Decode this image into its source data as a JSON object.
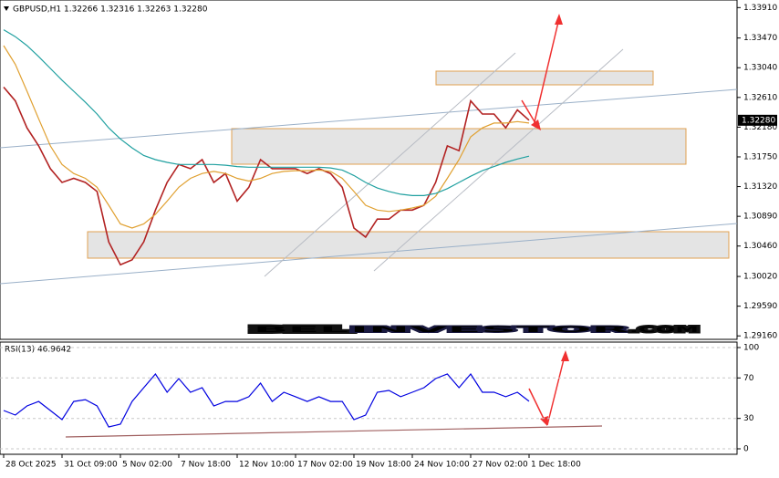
{
  "chart_data": [
    {
      "type": "line",
      "title": "GBPUSD,H1  1.32266 1.32316 1.32263 1.32280",
      "categories": [
        "28 Oct 2025",
        null,
        null,
        null,
        null,
        "31 Oct 09:00",
        null,
        null,
        null,
        null,
        "5 Nov 02:00",
        null,
        null,
        null,
        null,
        "7 Nov 18:00",
        null,
        null,
        null,
        null,
        "12 Nov 10:00",
        null,
        null,
        null,
        null,
        "17 Nov 02:00",
        null,
        null,
        null,
        null,
        "19 Nov 18:00",
        null,
        null,
        null,
        null,
        "24 Nov 10:00",
        null,
        null,
        null,
        null,
        "27 Nov 02:00",
        null,
        null,
        null,
        null,
        "1 Dec 18:00"
      ],
      "series": [
        {
          "color": "#b22222",
          "values": [
            1.3276,
            1.3256,
            1.3217,
            1.3191,
            1.3158,
            1.3138,
            1.3144,
            1.3138,
            1.3125,
            1.3052,
            1.3019,
            1.3026,
            1.3052,
            1.3098,
            1.3138,
            1.3164,
            1.3158,
            1.3171,
            1.3138,
            1.3151,
            1.3111,
            1.3131,
            1.3171,
            1.3158,
            1.3158,
            1.3158,
            1.3151,
            1.3158,
            1.3151,
            1.3131,
            1.3072,
            1.3059,
            1.3085,
            1.3085,
            1.3098,
            1.3098,
            1.3105,
            1.3138,
            1.3191,
            1.3184,
            1.3256,
            1.3237,
            1.3237,
            1.3217,
            1.3243,
            1.3228
          ]
        },
        {
          "color": "#e0a030",
          "values": [
            1.3336,
            1.3309,
            1.327,
            1.323,
            1.3191,
            1.3164,
            1.3151,
            1.3144,
            1.3131,
            1.3105,
            1.3078,
            1.3072,
            1.3078,
            1.3092,
            1.3111,
            1.3131,
            1.3144,
            1.3151,
            1.3154,
            1.3151,
            1.3144,
            1.314,
            1.3144,
            1.3151,
            1.3154,
            1.3155,
            1.3155,
            1.3156,
            1.3154,
            1.3144,
            1.3125,
            1.3105,
            1.3098,
            1.3096,
            1.3098,
            1.3101,
            1.3105,
            1.3118,
            1.3144,
            1.3171,
            1.3204,
            1.3217,
            1.3224,
            1.3224,
            1.3226,
            1.3224
          ]
        },
        {
          "color": "#20a0a0",
          "values": [
            1.3359,
            1.3349,
            1.3336,
            1.332,
            1.3303,
            1.3286,
            1.327,
            1.3254,
            1.3237,
            1.3217,
            1.3201,
            1.3188,
            1.3177,
            1.3171,
            1.3167,
            1.3164,
            1.3164,
            1.3164,
            1.3164,
            1.3163,
            1.3161,
            1.316,
            1.316,
            1.316,
            1.316,
            1.316,
            1.316,
            1.316,
            1.3159,
            1.3156,
            1.3148,
            1.3138,
            1.313,
            1.3125,
            1.3121,
            1.3119,
            1.3119,
            1.3122,
            1.3129,
            1.3138,
            1.3147,
            1.3155,
            1.3161,
            1.3167,
            1.3172,
            1.3176
          ]
        }
      ],
      "ylim": [
        1.2911,
        1.3402
      ],
      "yticks": [
        {
          "value": 1.3391,
          "label": "1.33910"
        },
        {
          "value": 1.3347,
          "label": "1.33470"
        },
        {
          "value": 1.3304,
          "label": "1.33040"
        },
        {
          "value": 1.3261,
          "label": "1.32610"
        },
        {
          "value": 1.3218,
          "label": "1.32180"
        },
        {
          "value": 1.3175,
          "label": "1.31750"
        },
        {
          "value": 1.3132,
          "label": "1.31320"
        },
        {
          "value": 1.3089,
          "label": "1.30890"
        },
        {
          "value": 1.3046,
          "label": "1.30460"
        },
        {
          "value": 1.3002,
          "label": "1.30020"
        },
        {
          "value": 1.2959,
          "label": "1.29590"
        },
        {
          "value": 1.2916,
          "label": "1.29160"
        }
      ],
      "current_price": {
        "value": 1.3228,
        "label": "1.32280"
      },
      "watermark": [
        "BEL",
        "INVESTOR",
        ".COM"
      ]
    },
    {
      "type": "line",
      "title": "RSI(13) 46.9642",
      "series": [
        {
          "color": "#0000e0",
          "values": [
            37.8,
            33.3,
            42.3,
            46.8,
            37.8,
            28.8,
            46.8,
            48.6,
            42.3,
            21.6,
            24.3,
            46.8,
            60.4,
            73.9,
            55.9,
            69.4,
            55.9,
            60.4,
            42.3,
            46.8,
            46.8,
            51.4,
            64.9,
            46.8,
            55.9,
            51.4,
            46.8,
            51.4,
            46.8,
            46.8,
            28.8,
            33.3,
            55.9,
            57.7,
            51.4,
            55.9,
            60.4,
            69.4,
            73.9,
            60.4,
            73.9,
            55.9,
            55.9,
            51.4,
            55.9,
            46.9642
          ]
        }
      ],
      "ylim": [
        -5.4,
        105.4
      ],
      "yticks": [
        100,
        70,
        30,
        0
      ]
    }
  ]
}
